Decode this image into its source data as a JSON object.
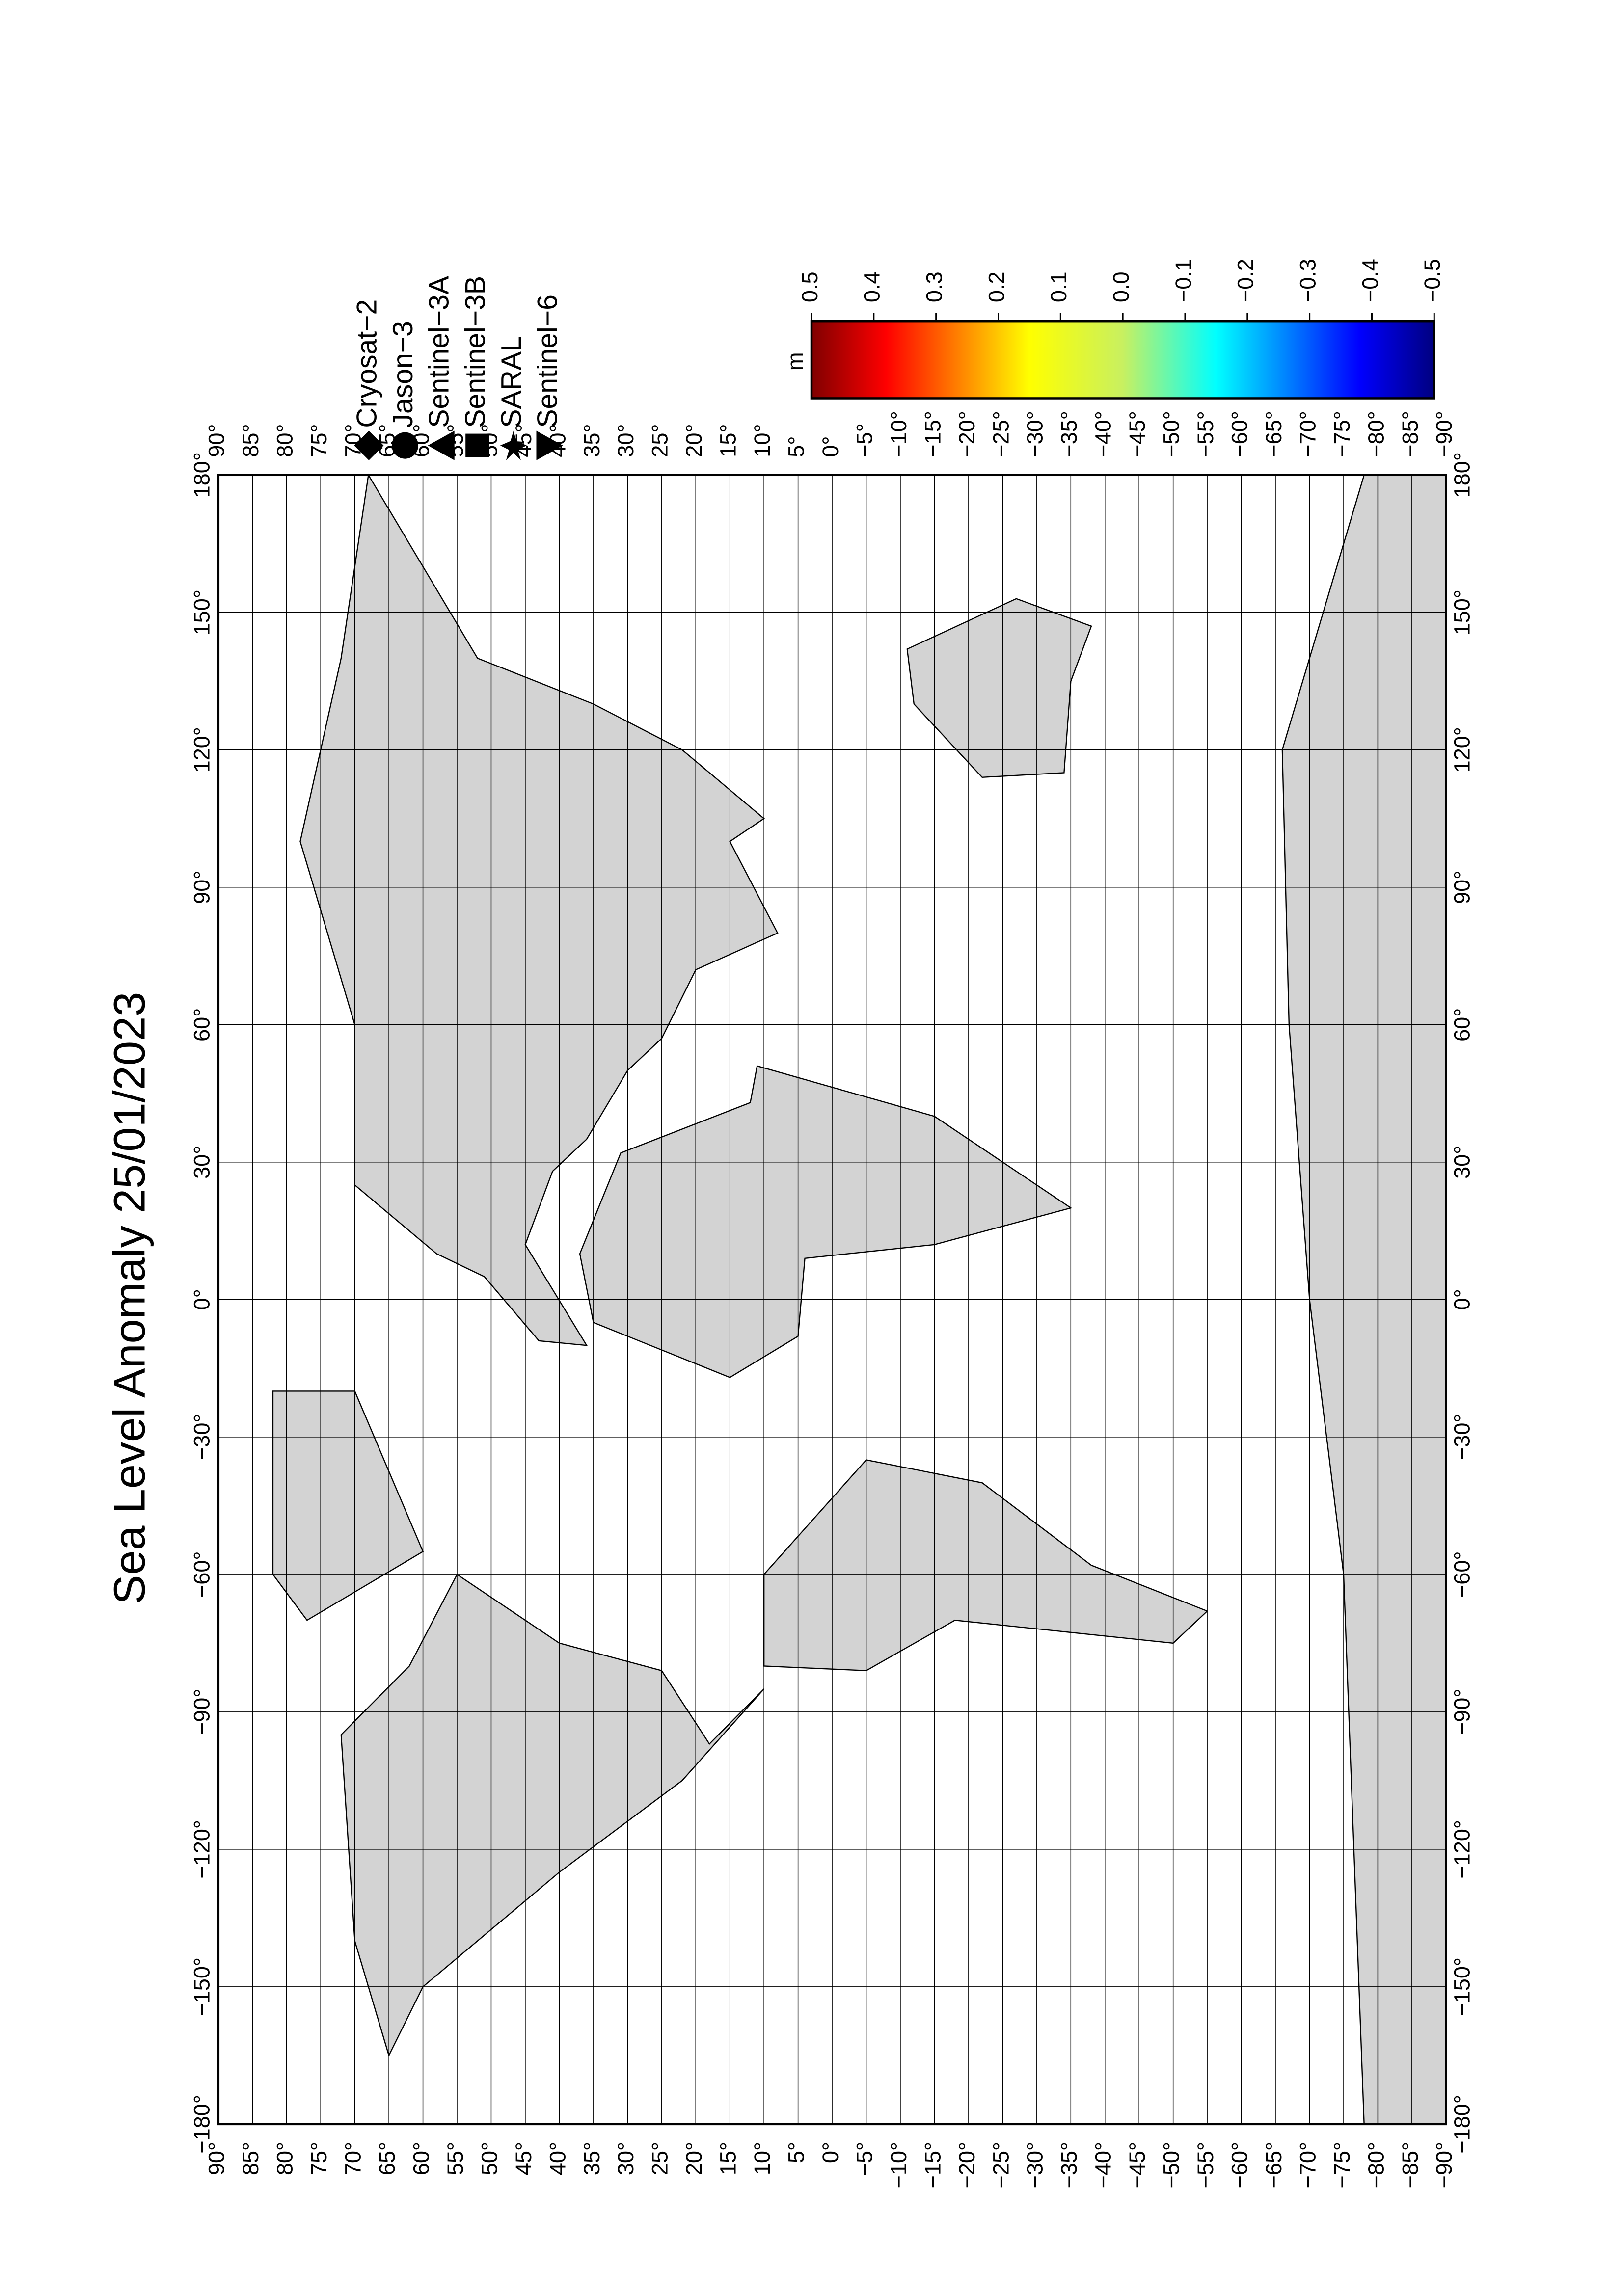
{
  "title": "Sea Level Anomaly 25/01/2023",
  "colorbar": {
    "label": "m",
    "lim": [
      0.5,
      -0.5
    ],
    "ticks": [
      0.5,
      0.4,
      0.3,
      0.2,
      0.1,
      {
        "value": 0,
        "label": "0.0"
      },
      {
        "value": -0.1,
        "label": "−0.1"
      },
      {
        "value": -0.2,
        "label": "−0.2"
      },
      {
        "value": -0.3,
        "label": "−0.3"
      },
      {
        "value": -0.4,
        "label": "−0.4"
      },
      {
        "value": -0.5,
        "label": "−0.5"
      }
    ]
  },
  "legend": [
    "Cryosat−2",
    "Jason−3",
    "Sentinel−3A",
    "Sentinel−3B",
    "SARAL",
    "Sentinel−6"
  ],
  "lat_ticks": [
    {
      "value": 90,
      "label": "90°"
    },
    {
      "value": 85,
      "label": "85°"
    },
    {
      "value": 80,
      "label": "80°"
    },
    {
      "value": 75,
      "label": "75°"
    },
    {
      "value": 70,
      "label": "70°"
    },
    {
      "value": 65,
      "label": "65°"
    },
    {
      "value": 60,
      "label": "60°"
    },
    {
      "value": 55,
      "label": "55°"
    },
    {
      "value": 50,
      "label": "50°"
    },
    {
      "value": 45,
      "label": "45°"
    },
    {
      "value": 40,
      "label": "40°"
    },
    {
      "value": 35,
      "label": "35°"
    },
    {
      "value": 30,
      "label": "30°"
    },
    {
      "value": 25,
      "label": "25°"
    },
    {
      "value": 20,
      "label": "20°"
    },
    {
      "value": 15,
      "label": "15°"
    },
    {
      "value": 10,
      "label": "10°"
    },
    {
      "value": 5,
      "label": "5°"
    },
    {
      "value": 0,
      "label": "0°"
    },
    {
      "value": -5,
      "label": "−5°"
    },
    {
      "value": -10,
      "label": "−10°"
    },
    {
      "value": -15,
      "label": "−15°"
    },
    {
      "value": -20,
      "label": "−20°"
    },
    {
      "value": -25,
      "label": "−25°"
    },
    {
      "value": -30,
      "label": "−30°"
    },
    {
      "value": -35,
      "label": "−35°"
    },
    {
      "value": -40,
      "label": "−40°"
    },
    {
      "value": -45,
      "label": "−45°"
    },
    {
      "value": -50,
      "label": "−50°"
    },
    {
      "value": -55,
      "label": "−55°"
    },
    {
      "value": -60,
      "label": "−60°"
    },
    {
      "value": -65,
      "label": "−65°"
    },
    {
      "value": -70,
      "label": "−70°"
    },
    {
      "value": -75,
      "label": "−75°"
    },
    {
      "value": -80,
      "label": "−80°"
    },
    {
      "value": -85,
      "label": "−85°"
    },
    {
      "value": -90,
      "label": "−90°"
    }
  ],
  "lon_ticks": [
    {
      "value": -180,
      "label": "−180°"
    },
    {
      "value": -150,
      "label": "−150°"
    },
    {
      "value": -120,
      "label": "−120°"
    },
    {
      "value": -90,
      "label": "−90°"
    },
    {
      "value": -60,
      "label": "−60°"
    },
    {
      "value": -30,
      "label": "−30°"
    },
    {
      "value": 0,
      "label": "0°"
    },
    {
      "value": 30,
      "label": "30°"
    },
    {
      "value": 60,
      "label": "60°"
    },
    {
      "value": 90,
      "label": "90°"
    },
    {
      "value": 120,
      "label": "120°"
    },
    {
      "value": 150,
      "label": "150°"
    },
    {
      "value": 180,
      "label": "180°"
    }
  ]
}
